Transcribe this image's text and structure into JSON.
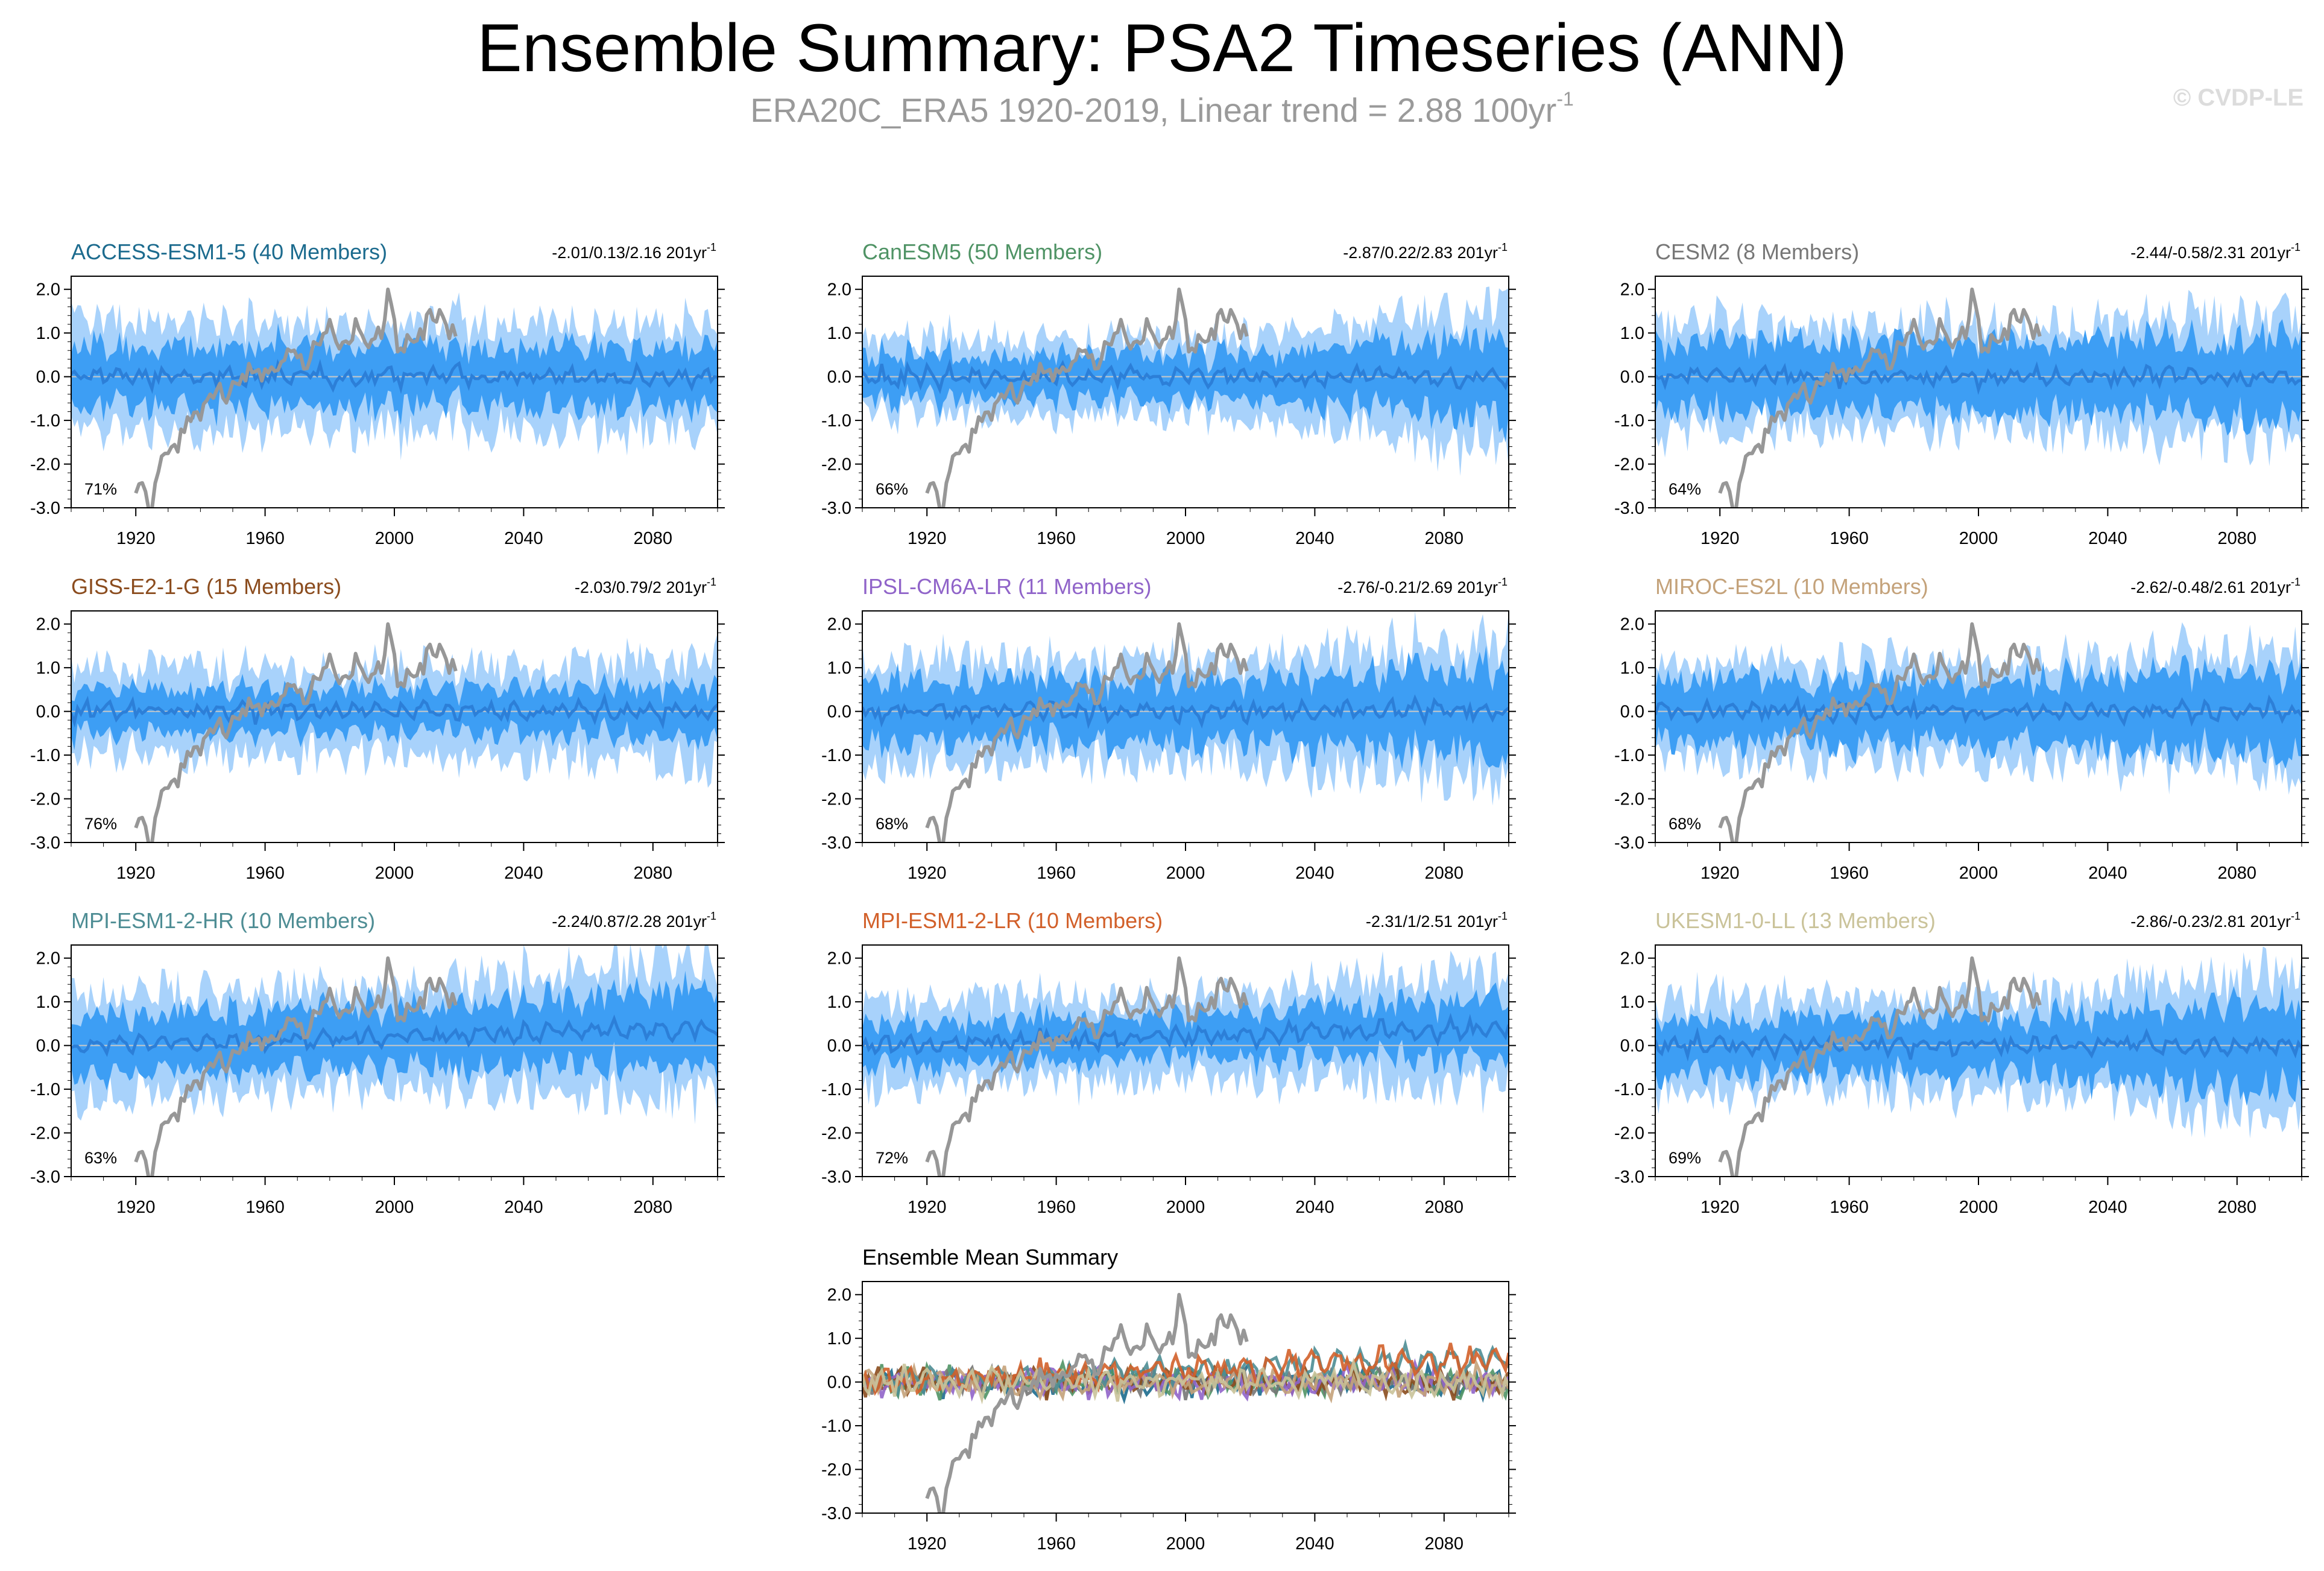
{
  "title": "Ensemble Summary: PSA2 Timeseries (ANN)",
  "subtitle": {
    "text": "ERA20C_ERA5 1920-2019, Linear trend = 2.88 100yr",
    "unit_sup": "-1"
  },
  "copyright": "© CVDP-LE",
  "chart_data": {
    "type": "line",
    "xlim": [
      1900,
      2100
    ],
    "ylim": [
      -3.0,
      2.3
    ],
    "x_ticks": [
      "1920",
      "1960",
      "2000",
      "2040",
      "2080"
    ],
    "y_ticks": [
      "2.0",
      "1.0",
      "0.0",
      "-1.0",
      "-2.0",
      "-3.0"
    ],
    "colors": {
      "outer_band": "#a8d2fb",
      "inner_band": "#3d9ef4",
      "ensemble_mean": "#2c7fd8",
      "observations": "#979797",
      "zero_line": "#c8c8c8"
    },
    "observations": {
      "name": "ERA20C_ERA5",
      "years": "1920-2019",
      "anchors": [
        [
          1920,
          -2.8
        ],
        [
          1922,
          -2.5
        ],
        [
          1925,
          -3.0
        ],
        [
          1928,
          -1.9
        ],
        [
          1932,
          -1.7
        ],
        [
          1936,
          -1.1
        ],
        [
          1940,
          -0.9
        ],
        [
          1944,
          -0.3
        ],
        [
          1948,
          -0.4
        ],
        [
          1952,
          -0.1
        ],
        [
          1956,
          0.2
        ],
        [
          1960,
          0.0
        ],
        [
          1964,
          0.3
        ],
        [
          1968,
          0.6
        ],
        [
          1972,
          0.2
        ],
        [
          1976,
          0.8
        ],
        [
          1980,
          1.1
        ],
        [
          1984,
          0.6
        ],
        [
          1988,
          1.2
        ],
        [
          1992,
          0.8
        ],
        [
          1996,
          1.1
        ],
        [
          1998,
          1.9
        ],
        [
          2001,
          0.7
        ],
        [
          2004,
          0.8
        ],
        [
          2008,
          0.9
        ],
        [
          2012,
          1.5
        ],
        [
          2016,
          1.2
        ],
        [
          2019,
          0.9
        ]
      ]
    },
    "panels": [
      {
        "title": "ACCESS-ESM1-5 (40 Members)",
        "stats": "-2.01/0.13/2.16 201yr",
        "unit_sup": "-1",
        "percent": "71%",
        "color": "#1c6b8e"
      },
      {
        "title": "CanESM5 (50 Members)",
        "stats": "-2.87/0.22/2.83 201yr",
        "unit_sup": "-1",
        "percent": "66%",
        "color": "#4f9365"
      },
      {
        "title": "CESM2 (8 Members)",
        "stats": "-2.44/-0.58/2.31 201yr",
        "unit_sup": "-1",
        "percent": "64%",
        "color": "#777777"
      },
      {
        "title": "GISS-E2-1-G (15 Members)",
        "stats": "-2.03/0.79/2 201yr",
        "unit_sup": "-1",
        "percent": "76%",
        "color": "#8b4c1e"
      },
      {
        "title": "IPSL-CM6A-LR (11 Members)",
        "stats": "-2.76/-0.21/2.69 201yr",
        "unit_sup": "-1",
        "percent": "68%",
        "color": "#9064c9"
      },
      {
        "title": "MIROC-ES2L (10 Members)",
        "stats": "-2.62/-0.48/2.61 201yr",
        "unit_sup": "-1",
        "percent": "68%",
        "color": "#c4a27a"
      },
      {
        "title": "MPI-ESM1-2-HR (10 Members)",
        "stats": "-2.24/0.87/2.28 201yr",
        "unit_sup": "-1",
        "percent": "63%",
        "color": "#4e8d94"
      },
      {
        "title": "MPI-ESM1-2-LR (10 Members)",
        "stats": "-2.31/1/2.51 201yr",
        "unit_sup": "-1",
        "percent": "72%",
        "color": "#d2602a"
      },
      {
        "title": "UKESM1-0-LL (13 Members)",
        "stats": "-2.86/-0.23/2.81 201yr",
        "unit_sup": "-1",
        "percent": "69%",
        "color": "#cac39a"
      }
    ],
    "summary": {
      "title": "Ensemble Mean Summary",
      "color": "#000000"
    }
  }
}
